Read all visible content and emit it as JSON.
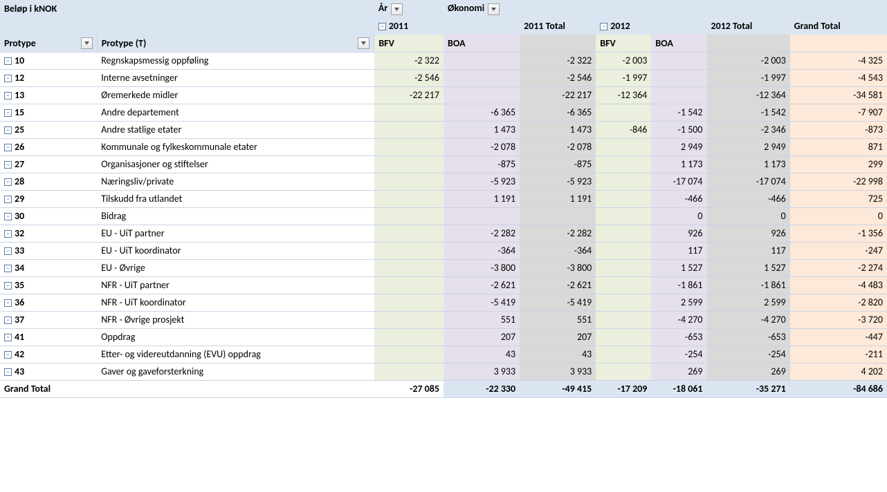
{
  "header": {
    "title": "Beløp i kNOK",
    "col_year": "År",
    "col_econ": "Økonomi",
    "year1": "2011",
    "year1_total": "2011 Total",
    "year2": "2012",
    "year2_total": "2012 Total",
    "grand_total": "Grand Total",
    "protype": "Protype",
    "protype_t": "Protype (T)",
    "bfv": "BFV",
    "boa": "BOA"
  },
  "colors": {
    "header_bg": "#dbe5f1",
    "bfv_bg": "#ebf0de",
    "boa_bg": "#e6e0ec",
    "total_bg": "#d9d9d9",
    "grand_bg": "#fde9d9",
    "border": "#c9d4e6"
  },
  "rows": [
    {
      "code": "10",
      "label": "Regnskapsmessig oppføling",
      "bfv1": "-2 322",
      "boa1": "",
      "tot1": "-2 322",
      "bfv2": "-2 003",
      "boa2": "",
      "tot2": "-2 003",
      "gt": "-4 325"
    },
    {
      "code": "12",
      "label": "Interne avsetninger",
      "bfv1": "-2 546",
      "boa1": "",
      "tot1": "-2 546",
      "bfv2": "-1 997",
      "boa2": "",
      "tot2": "-1 997",
      "gt": "-4 543"
    },
    {
      "code": "13",
      "label": "Øremerkede midler",
      "bfv1": "-22 217",
      "boa1": "",
      "tot1": "-22 217",
      "bfv2": "-12 364",
      "boa2": "",
      "tot2": "-12 364",
      "gt": "-34 581"
    },
    {
      "code": "15",
      "label": "Andre departement",
      "bfv1": "",
      "boa1": "-6 365",
      "tot1": "-6 365",
      "bfv2": "",
      "boa2": "-1 542",
      "tot2": "-1 542",
      "gt": "-7 907"
    },
    {
      "code": "25",
      "label": "Andre statlige etater",
      "bfv1": "",
      "boa1": "1 473",
      "tot1": "1 473",
      "bfv2": "-846",
      "boa2": "-1 500",
      "tot2": "-2 346",
      "gt": "-873"
    },
    {
      "code": "26",
      "label": "Kommunale og fylkeskommunale etater",
      "bfv1": "",
      "boa1": "-2 078",
      "tot1": "-2 078",
      "bfv2": "",
      "boa2": "2 949",
      "tot2": "2 949",
      "gt": "871"
    },
    {
      "code": "27",
      "label": "Organisasjoner og stiftelser",
      "bfv1": "",
      "boa1": "-875",
      "tot1": "-875",
      "bfv2": "",
      "boa2": "1 173",
      "tot2": "1 173",
      "gt": "299"
    },
    {
      "code": "28",
      "label": "Næringsliv/private",
      "bfv1": "",
      "boa1": "-5 923",
      "tot1": "-5 923",
      "bfv2": "",
      "boa2": "-17 074",
      "tot2": "-17 074",
      "gt": "-22 998"
    },
    {
      "code": "29",
      "label": "Tilskudd fra utlandet",
      "bfv1": "",
      "boa1": "1 191",
      "tot1": "1 191",
      "bfv2": "",
      "boa2": "-466",
      "tot2": "-466",
      "gt": "725"
    },
    {
      "code": "30",
      "label": "Bidrag",
      "bfv1": "",
      "boa1": "",
      "tot1": "",
      "bfv2": "",
      "boa2": "0",
      "tot2": "0",
      "gt": "0"
    },
    {
      "code": "32",
      "label": "EU - UiT partner",
      "bfv1": "",
      "boa1": "-2 282",
      "tot1": "-2 282",
      "bfv2": "",
      "boa2": "926",
      "tot2": "926",
      "gt": "-1 356"
    },
    {
      "code": "33",
      "label": "EU - UiT koordinator",
      "bfv1": "",
      "boa1": "-364",
      "tot1": "-364",
      "bfv2": "",
      "boa2": "117",
      "tot2": "117",
      "gt": "-247"
    },
    {
      "code": "34",
      "label": "EU - Øvrige",
      "bfv1": "",
      "boa1": "-3 800",
      "tot1": "-3 800",
      "bfv2": "",
      "boa2": "1 527",
      "tot2": "1 527",
      "gt": "-2 274"
    },
    {
      "code": "35",
      "label": "NFR - UiT partner",
      "bfv1": "",
      "boa1": "-2 621",
      "tot1": "-2 621",
      "bfv2": "",
      "boa2": "-1 861",
      "tot2": "-1 861",
      "gt": "-4 483"
    },
    {
      "code": "36",
      "label": "NFR - UiT koordinator",
      "bfv1": "",
      "boa1": "-5 419",
      "tot1": "-5 419",
      "bfv2": "",
      "boa2": "2 599",
      "tot2": "2 599",
      "gt": "-2 820"
    },
    {
      "code": "37",
      "label": "NFR - Øvrige prosjekt",
      "bfv1": "",
      "boa1": "551",
      "tot1": "551",
      "bfv2": "",
      "boa2": "-4 270",
      "tot2": "-4 270",
      "gt": "-3 720"
    },
    {
      "code": "41",
      "label": "Oppdrag",
      "bfv1": "",
      "boa1": "207",
      "tot1": "207",
      "bfv2": "",
      "boa2": "-653",
      "tot2": "-653",
      "gt": "-447"
    },
    {
      "code": "42",
      "label": "Etter- og videreutdanning (EVU) oppdrag",
      "bfv1": "",
      "boa1": "43",
      "tot1": "43",
      "bfv2": "",
      "boa2": "-254",
      "tot2": "-254",
      "gt": "-211"
    },
    {
      "code": "43",
      "label": "Gaver og gaveforsterkning",
      "bfv1": "",
      "boa1": "3 933",
      "tot1": "3 933",
      "bfv2": "",
      "boa2": "269",
      "tot2": "269",
      "gt": "4 202"
    }
  ],
  "grand": {
    "label": "Grand Total",
    "bfv1": "-27 085",
    "boa1": "-22 330",
    "tot1": "-49 415",
    "bfv2": "-17 209",
    "boa2": "-18 061",
    "tot2": "-35 271",
    "gt": "-84 686"
  }
}
